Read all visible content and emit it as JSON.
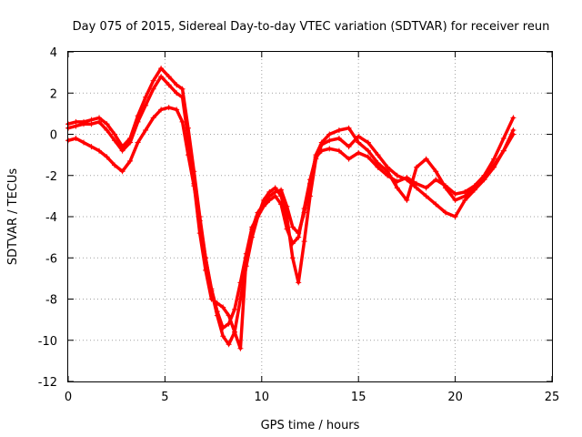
{
  "chart_data": {
    "type": "scatter",
    "title": "Day 075 of 2015, Sidereal Day-to-day VTEC variation (SDTVAR) for receiver reun",
    "xlabel": "GPS time / hours",
    "ylabel": "SDTVAR / TECUs",
    "xlim": [
      0,
      25
    ],
    "ylim": [
      -12,
      4
    ],
    "xticks": [
      "0",
      "5",
      "10",
      "15",
      "20",
      "25"
    ],
    "yticks": [
      "-12",
      "-10",
      "-8",
      "-6",
      "-4",
      "-2",
      "0",
      "2",
      "4"
    ],
    "grid": true,
    "marker": "+",
    "color": "#ff0000",
    "series": [
      {
        "x": [
          0.0,
          0.4,
          0.8,
          1.2,
          1.6,
          2.0,
          2.4,
          2.8,
          3.2,
          3.6,
          4.0,
          4.4,
          4.8,
          5.2,
          5.6,
          5.9,
          6.2,
          6.5,
          6.8,
          7.1,
          7.4,
          7.7,
          8.0,
          8.3,
          8.6,
          8.9,
          9.2,
          9.5,
          9.8,
          10.1,
          10.4,
          10.7,
          11.0,
          11.3,
          11.6,
          11.9,
          12.2,
          12.5,
          12.8,
          13.1,
          13.5,
          14.0,
          14.5,
          15.0,
          15.5,
          16.0,
          16.5,
          17.0,
          17.5,
          18.0,
          18.5,
          19.0,
          19.5,
          20.0,
          20.5,
          21.0,
          21.5,
          22.0,
          22.5,
          23.0
        ],
        "y": [
          -0.3,
          -0.2,
          -0.4,
          -0.6,
          -0.8,
          -1.1,
          -1.5,
          -1.8,
          -1.3,
          -0.4,
          0.2,
          0.8,
          1.2,
          1.3,
          1.2,
          0.6,
          -1.0,
          -2.5,
          -4.2,
          -6.0,
          -7.5,
          -8.6,
          -9.4,
          -9.2,
          -8.5,
          -7.2,
          -5.8,
          -4.5,
          -4.0,
          -3.5,
          -3.2,
          -3.0,
          -3.4,
          -4.6,
          -5.3,
          -5.0,
          -3.6,
          -2.2,
          -1.1,
          -0.8,
          -0.7,
          -0.8,
          -1.2,
          -0.9,
          -1.1,
          -1.6,
          -2.0,
          -2.3,
          -2.1,
          -2.4,
          -2.6,
          -2.2,
          -2.5,
          -2.9,
          -2.8,
          -2.5,
          -2.0,
          -1.5,
          -0.8,
          0.0
        ]
      },
      {
        "x": [
          0.0,
          0.4,
          0.8,
          1.2,
          1.6,
          2.0,
          2.4,
          2.8,
          3.2,
          3.6,
          4.0,
          4.4,
          4.8,
          5.2,
          5.6,
          5.9,
          6.2,
          6.5,
          6.8,
          7.1,
          7.4,
          7.7,
          8.0,
          8.3,
          8.6,
          8.9,
          9.2,
          9.5,
          9.8,
          10.1,
          10.4,
          10.7,
          11.0,
          11.3,
          11.6,
          11.9,
          12.2,
          12.5,
          12.8,
          13.1,
          13.5,
          14.0,
          14.5,
          15.0,
          15.5,
          16.0,
          16.5,
          17.0,
          17.5,
          18.0,
          18.5,
          19.0,
          19.5,
          20.0,
          20.5,
          21.0,
          21.5,
          22.0,
          22.5,
          23.0
        ],
        "y": [
          0.5,
          0.6,
          0.6,
          0.7,
          0.8,
          0.5,
          0.0,
          -0.6,
          -0.2,
          0.9,
          1.8,
          2.6,
          3.2,
          2.8,
          2.4,
          2.2,
          0.3,
          -1.8,
          -4.0,
          -6.0,
          -7.6,
          -8.8,
          -9.8,
          -10.2,
          -9.6,
          -8.0,
          -6.4,
          -5.0,
          -4.0,
          -3.2,
          -2.8,
          -2.6,
          -3.0,
          -4.0,
          -6.0,
          -7.2,
          -5.2,
          -3.0,
          -1.2,
          -0.5,
          -0.3,
          -0.2,
          -0.6,
          -0.1,
          -0.4,
          -1.0,
          -1.6,
          -2.0,
          -2.2,
          -2.6,
          -3.0,
          -3.4,
          -3.8,
          -4.0,
          -3.2,
          -2.7,
          -2.2,
          -1.6,
          -0.8,
          0.2
        ]
      },
      {
        "x": [
          0.0,
          0.4,
          0.8,
          1.2,
          1.6,
          2.0,
          2.4,
          2.8,
          3.2,
          3.6,
          4.0,
          4.4,
          4.8,
          5.2,
          5.6,
          5.9,
          6.2,
          6.5,
          6.8,
          7.1,
          7.4,
          7.7,
          8.0,
          8.3,
          8.6,
          8.9,
          9.2,
          9.5,
          9.8,
          10.1,
          10.4,
          10.7,
          11.0,
          11.3,
          11.6,
          11.9,
          12.2,
          12.5,
          12.8,
          13.1,
          13.5,
          14.0,
          14.5,
          15.0,
          15.5,
          16.0,
          16.5,
          17.0,
          17.5,
          18.0,
          18.5,
          19.0,
          19.5,
          20.0,
          20.5,
          21.0,
          21.5,
          22.0,
          22.5,
          23.0
        ],
        "y": [
          0.3,
          0.4,
          0.5,
          0.5,
          0.6,
          0.2,
          -0.3,
          -0.8,
          -0.4,
          0.6,
          1.4,
          2.2,
          2.8,
          2.4,
          2.0,
          1.8,
          -0.2,
          -2.4,
          -4.8,
          -6.6,
          -8.0,
          -8.2,
          -8.4,
          -8.8,
          -9.6,
          -10.4,
          -6.0,
          -4.6,
          -3.8,
          -3.4,
          -3.0,
          -2.8,
          -2.7,
          -3.5,
          -4.5,
          -4.8,
          -3.8,
          -2.4,
          -1.0,
          -0.4,
          0.0,
          0.2,
          0.3,
          -0.4,
          -0.8,
          -1.4,
          -1.8,
          -2.6,
          -3.2,
          -1.6,
          -1.2,
          -1.8,
          -2.6,
          -3.2,
          -3.0,
          -2.6,
          -2.0,
          -1.2,
          -0.2,
          0.8
        ]
      }
    ]
  }
}
